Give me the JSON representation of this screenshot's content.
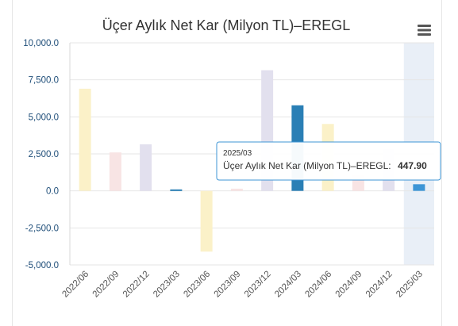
{
  "chart_data": {
    "type": "bar",
    "title": "Üçer Aylık Net Kar (Milyon TL)–EREGL",
    "categories": [
      "2022/06",
      "2022/09",
      "2022/12",
      "2023/03",
      "2023/06",
      "2023/09",
      "2023/12",
      "2024/03",
      "2024/06",
      "2024/09",
      "2024/12",
      "2025/03"
    ],
    "values": [
      6900,
      2600,
      3150,
      100,
      -4100,
      150,
      8150,
      5780,
      4520,
      1050,
      2800,
      447.9
    ],
    "bar_colors": [
      "#fbf1c8",
      "#f8e4e4",
      "#e2e0ee",
      "#2a7fb5",
      "#fbf1c8",
      "#f8e4e4",
      "#e2e0ee",
      "#2a7fb5",
      "#fbf1c8",
      "#f8e4e4",
      "#e2e0ee",
      "#3d95d6"
    ],
    "ylim": [
      -5000,
      10000
    ],
    "yticks": [
      10000,
      7500,
      5000,
      2500,
      0,
      -2500,
      -5000
    ],
    "ytick_labels": [
      "10,000.0",
      "7,500.0",
      "5,000.0",
      "2,500.0",
      "0.0",
      "-2,500.0",
      "-5,000.0"
    ],
    "grid": true,
    "highlighted_category": "2025/03"
  },
  "tooltip": {
    "category": "2025/03",
    "series_label": "Üçer Aylık Net Kar (Milyon TL)–EREGL:",
    "value_text": "447.90"
  },
  "menu": {
    "icon": "hamburger-menu-icon"
  },
  "colors": {
    "accent": "#2a7fb5",
    "hover_band": "#e9eff7",
    "tooltip_border": "#3d95d6"
  }
}
